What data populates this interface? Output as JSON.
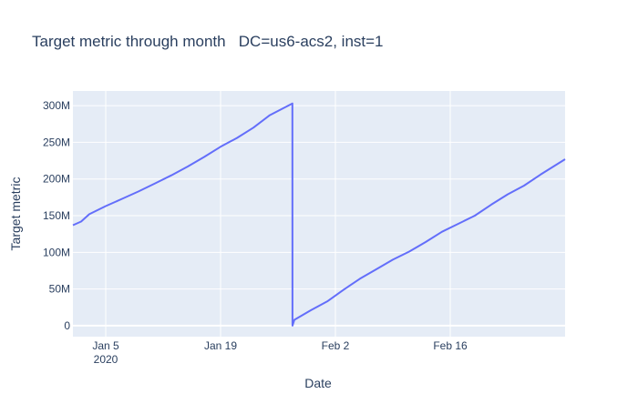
{
  "chart_data": {
    "type": "line",
    "title": "Target metric through month   DC=us6-acs2, inst=1",
    "xlabel": "Date",
    "ylabel": "Target metric",
    "x_ticks": [
      {
        "date": "2020-01-05",
        "label": "Jan 5",
        "sublabel": "2020"
      },
      {
        "date": "2020-01-19",
        "label": "Jan 19",
        "sublabel": ""
      },
      {
        "date": "2020-02-02",
        "label": "Feb 2",
        "sublabel": ""
      },
      {
        "date": "2020-02-16",
        "label": "Feb 16",
        "sublabel": ""
      }
    ],
    "y_ticks": [
      {
        "value": 0,
        "label": "0"
      },
      {
        "value": 50000000,
        "label": "50M"
      },
      {
        "value": 100000000,
        "label": "100M"
      },
      {
        "value": 150000000,
        "label": "150M"
      },
      {
        "value": 200000000,
        "label": "200M"
      },
      {
        "value": 250000000,
        "label": "250M"
      },
      {
        "value": 300000000,
        "label": "300M"
      }
    ],
    "xlim": [
      "2020-01-01",
      "2020-03-01"
    ],
    "ylim": [
      -15000000,
      320000000
    ],
    "grid": true,
    "series": [
      {
        "color": "#636efa",
        "points": [
          {
            "x": "2020-01-01",
            "y": 137000000
          },
          {
            "x": "2020-01-02",
            "y": 142000000
          },
          {
            "x": "2020-01-03",
            "y": 152000000
          },
          {
            "x": "2020-01-05",
            "y": 163000000
          },
          {
            "x": "2020-01-07",
            "y": 173000000
          },
          {
            "x": "2020-01-09",
            "y": 183000000
          },
          {
            "x": "2020-01-11",
            "y": 194000000
          },
          {
            "x": "2020-01-13",
            "y": 205000000
          },
          {
            "x": "2020-01-15",
            "y": 217000000
          },
          {
            "x": "2020-01-17",
            "y": 230000000
          },
          {
            "x": "2020-01-19",
            "y": 244000000
          },
          {
            "x": "2020-01-21",
            "y": 256000000
          },
          {
            "x": "2020-01-23",
            "y": 270000000
          },
          {
            "x": "2020-01-25",
            "y": 287000000
          },
          {
            "x": "2020-01-27T18:00",
            "y": 303000000
          },
          {
            "x": "2020-01-27T18:30",
            "y": 0
          },
          {
            "x": "2020-01-28",
            "y": 8000000
          },
          {
            "x": "2020-01-30",
            "y": 21000000
          },
          {
            "x": "2020-02-01",
            "y": 33000000
          },
          {
            "x": "2020-02-03",
            "y": 49000000
          },
          {
            "x": "2020-02-05",
            "y": 64000000
          },
          {
            "x": "2020-02-07",
            "y": 77000000
          },
          {
            "x": "2020-02-09",
            "y": 90000000
          },
          {
            "x": "2020-02-11",
            "y": 101000000
          },
          {
            "x": "2020-02-13",
            "y": 114000000
          },
          {
            "x": "2020-02-15",
            "y": 128000000
          },
          {
            "x": "2020-02-17",
            "y": 139000000
          },
          {
            "x": "2020-02-19",
            "y": 150000000
          },
          {
            "x": "2020-02-21",
            "y": 165000000
          },
          {
            "x": "2020-02-23",
            "y": 179000000
          },
          {
            "x": "2020-02-25",
            "y": 191000000
          },
          {
            "x": "2020-02-27",
            "y": 206000000
          },
          {
            "x": "2020-03-01",
            "y": 227000000
          }
        ]
      }
    ]
  }
}
